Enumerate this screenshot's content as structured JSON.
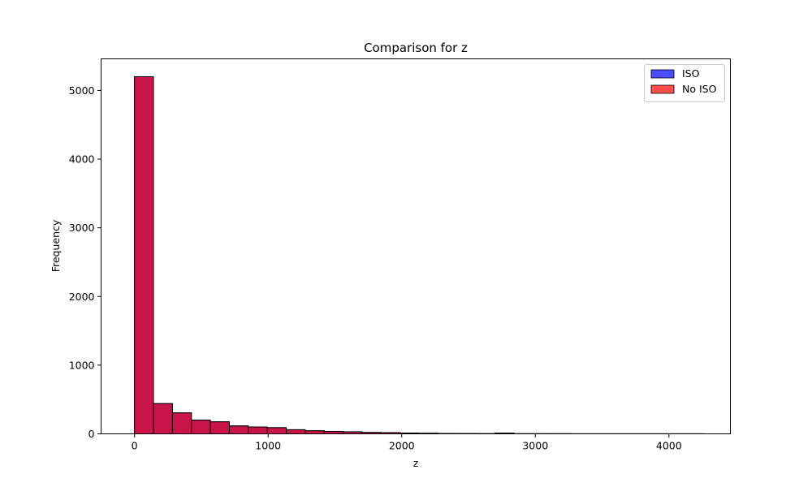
{
  "chart_data": {
    "type": "bar",
    "title": "Comparison for z",
    "xlabel": "z",
    "ylabel": "Frequency",
    "xlim": [
      -250,
      4460
    ],
    "ylim": [
      0,
      5460
    ],
    "xticks": [
      0,
      1000,
      2000,
      3000,
      4000
    ],
    "yticks": [
      0,
      1000,
      2000,
      3000,
      4000,
      5000
    ],
    "bin_edges": [
      0,
      142,
      284,
      426,
      568,
      710,
      852,
      994,
      1136,
      1278,
      1420,
      1562,
      1704,
      1846,
      1988,
      2130,
      2272,
      2414,
      2556,
      2698,
      2840,
      2982,
      3124,
      3266,
      3408,
      3550,
      3692,
      3834,
      3976,
      4118,
      4260
    ],
    "grid": false,
    "legend_position": "top-right",
    "overlap_color": "#c8144a",
    "series": [
      {
        "name": "ISO",
        "color": "#0000ff",
        "values": [
          5200,
          440,
          305,
          200,
          175,
          115,
          100,
          90,
          60,
          45,
          35,
          30,
          20,
          18,
          12,
          8,
          6,
          5,
          3,
          10,
          2,
          2,
          2,
          1,
          1,
          1,
          1,
          1,
          1,
          1
        ]
      },
      {
        "name": "No ISO",
        "color": "#ff0000",
        "values": [
          5200,
          440,
          305,
          200,
          175,
          115,
          100,
          90,
          60,
          45,
          35,
          30,
          20,
          18,
          12,
          8,
          6,
          5,
          3,
          10,
          2,
          2,
          2,
          1,
          1,
          1,
          1,
          1,
          1,
          1
        ]
      }
    ]
  }
}
